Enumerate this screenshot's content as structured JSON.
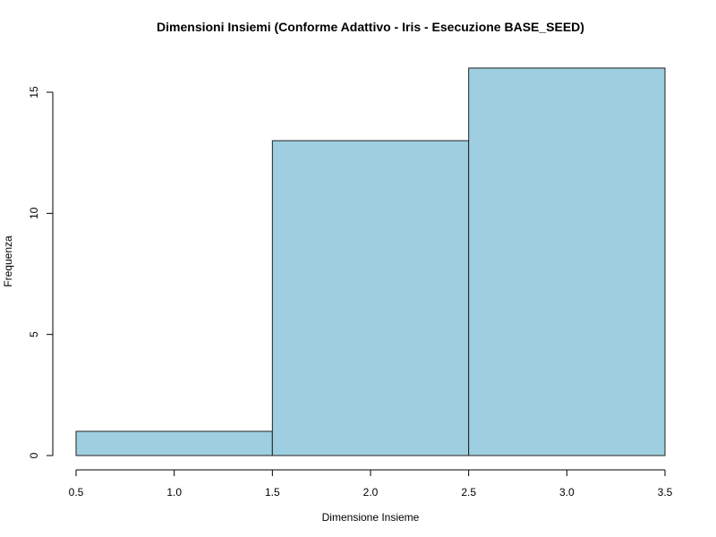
{
  "chart_data": {
    "type": "bar",
    "subtype": "histogram",
    "title": "Dimensioni Insiemi (Conforme Adattivo - Iris - Esecuzione BASE_SEED)",
    "xlabel": "Dimensione Insieme",
    "ylabel": "Frequenza",
    "bins": [
      {
        "x0": 0.5,
        "x1": 1.5,
        "count": 1
      },
      {
        "x0": 1.5,
        "x1": 2.5,
        "count": 13
      },
      {
        "x0": 2.5,
        "x1": 3.5,
        "count": 16
      }
    ],
    "xlim": [
      0.5,
      3.5
    ],
    "ylim": [
      0,
      16
    ],
    "x_ticks": [
      "0.5",
      "1.0",
      "1.5",
      "2.0",
      "2.5",
      "3.0",
      "3.5"
    ],
    "y_ticks": [
      "0",
      "5",
      "10",
      "15"
    ],
    "bar_color": "#9ecfe0",
    "grid": false,
    "legend": "none"
  }
}
